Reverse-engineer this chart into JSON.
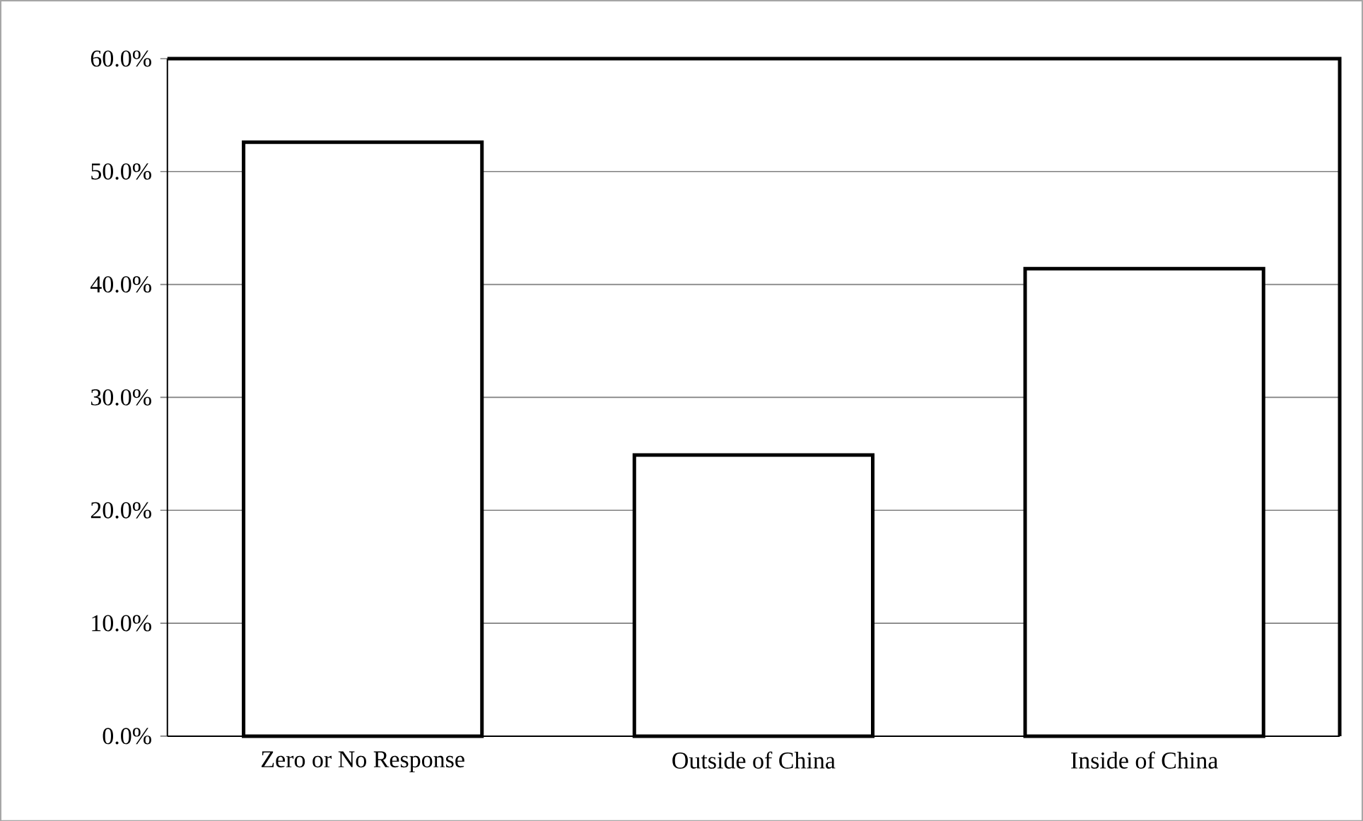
{
  "chart_data": {
    "type": "bar",
    "categories": [
      "Zero or No Response",
      "Outside of China",
      "Inside of China"
    ],
    "values": [
      52.6,
      24.9,
      41.4
    ],
    "color": "#ffffff",
    "ylim": [
      0,
      60
    ],
    "yticks": [
      {
        "value": 0,
        "label": "0.0%"
      },
      {
        "value": 10,
        "label": "10.0%"
      },
      {
        "value": 20,
        "label": "20.0%"
      },
      {
        "value": 30,
        "label": "30.0%"
      },
      {
        "value": 40,
        "label": "40.0%"
      },
      {
        "value": 50,
        "label": "50.0%"
      },
      {
        "value": 60,
        "label": "60.0%"
      }
    ],
    "grid": "y"
  }
}
